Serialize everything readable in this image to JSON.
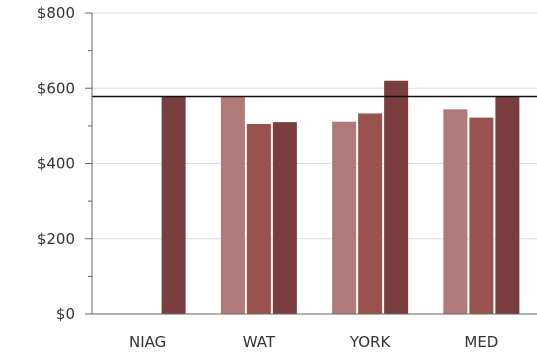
{
  "chart_data": {
    "type": "bar",
    "title": "",
    "xlabel": "",
    "ylabel": "",
    "categories": [
      "NIAG",
      "WAT",
      "YORK",
      "MED"
    ],
    "series": [
      {
        "color": "#b07a78",
        "values": [
          null,
          578,
          511,
          544
        ]
      },
      {
        "color": "#9a524f",
        "values": [
          null,
          505,
          533,
          522
        ]
      },
      {
        "color": "#7a3e3f",
        "values": [
          578,
          510,
          620,
          578
        ]
      }
    ],
    "reference_line": {
      "value": 578,
      "color": "#111111"
    },
    "ylim": [
      0,
      800
    ],
    "y_ticks": [
      0,
      200,
      400,
      600,
      800
    ],
    "y_tick_labels": [
      "$0",
      "$200",
      "$400",
      "$600",
      "$800"
    ],
    "grid": true,
    "grid_color": "#dddddd",
    "axis_color": "#666666"
  }
}
